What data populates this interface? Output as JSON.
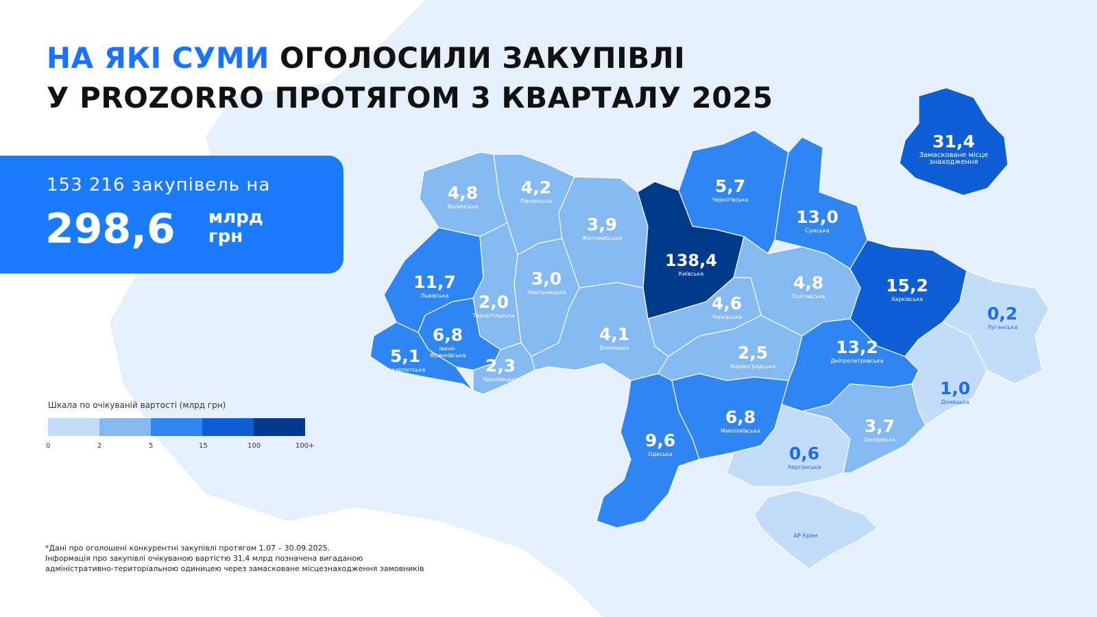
{
  "title": {
    "accent": "НА ЯКІ СУМИ",
    "line1_rest": "ОГОЛОСИЛИ ЗАКУПІВЛІ",
    "line2": "У PROZORRO ПРОТЯГОМ 3 КВАРТАЛУ 2025"
  },
  "summary": {
    "count_text": "153 216 закупівель на",
    "amount": "298,6",
    "unit_line1": "млрд",
    "unit_line2": "грн"
  },
  "legend": {
    "title": "Шкала по очікуваній вартості (млрд грн)",
    "ticks": [
      "0",
      "2",
      "5",
      "15",
      "100",
      "100+"
    ],
    "colors": [
      "#c2dcfa",
      "#85b9f2",
      "#2f86f2",
      "#0e5fd6",
      "#003a8a"
    ]
  },
  "regions": [
    {
      "id": "volyn",
      "name": "Волинська",
      "value": "4,8"
    },
    {
      "id": "rivne",
      "name": "Рівненська",
      "value": "4,2"
    },
    {
      "id": "zhytomyr",
      "name": "Житомирська",
      "value": "3,9"
    },
    {
      "id": "kyiv",
      "name": "Київська",
      "value": "138,4"
    },
    {
      "id": "chernihiv",
      "name": "Чернігівська",
      "value": "5,7"
    },
    {
      "id": "sumy",
      "name": "Сумська",
      "value": "13,0"
    },
    {
      "id": "lviv",
      "name": "Львівська",
      "value": "11,7"
    },
    {
      "id": "ternopil",
      "name": "Тернопільська",
      "value": "2,0"
    },
    {
      "id": "khmelnytskyi",
      "name": "Хмельницька",
      "value": "3,0"
    },
    {
      "id": "cherkasy",
      "name": "Черкаська",
      "value": "4,6"
    },
    {
      "id": "poltava",
      "name": "Полтавська",
      "value": "4,8"
    },
    {
      "id": "kharkiv",
      "name": "Харківська",
      "value": "15,2"
    },
    {
      "id": "luhansk",
      "name": "Луганська",
      "value": "0,2"
    },
    {
      "id": "zakarpattia",
      "name": "Закарпатська",
      "value": "5,1"
    },
    {
      "id": "ivano-frankivsk",
      "name": "Івано-\nФранківська",
      "value": "6,8"
    },
    {
      "id": "chernivtsi",
      "name": "Чернівецька",
      "value": "2,3"
    },
    {
      "id": "vinnytsia",
      "name": "Вінницька",
      "value": "4,1"
    },
    {
      "id": "kirovohrad",
      "name": "Кіровоградська",
      "value": "2,5"
    },
    {
      "id": "dnipropetrovsk",
      "name": "Дніпропетровська",
      "value": "13,2"
    },
    {
      "id": "donetsk",
      "name": "Донецька",
      "value": "1,0"
    },
    {
      "id": "odesa",
      "name": "Одеська",
      "value": "9,6"
    },
    {
      "id": "mykolaiv",
      "name": "Миколаївська",
      "value": "6,8"
    },
    {
      "id": "kherson",
      "name": "Херсонська",
      "value": "0,6"
    },
    {
      "id": "zaporizhzhia",
      "name": "Запорізька",
      "value": "3,7"
    },
    {
      "id": "crimea",
      "name": "АР Крим",
      "value": ""
    },
    {
      "id": "masked",
      "name": "Замасковане місце\nзнаходження",
      "value": "31,4"
    }
  ],
  "footnote": {
    "line1": "*Дані про оголошені конкурентні закупівлі протягом 1.07 – 30.09.2025.",
    "line2": "Інформація про закупівлі очікуваною вартістю 31,4 млрд позначена вигаданою",
    "line3": "адміністративно-територіальною одиницею через замасковане місцезнаходження замовників"
  }
}
